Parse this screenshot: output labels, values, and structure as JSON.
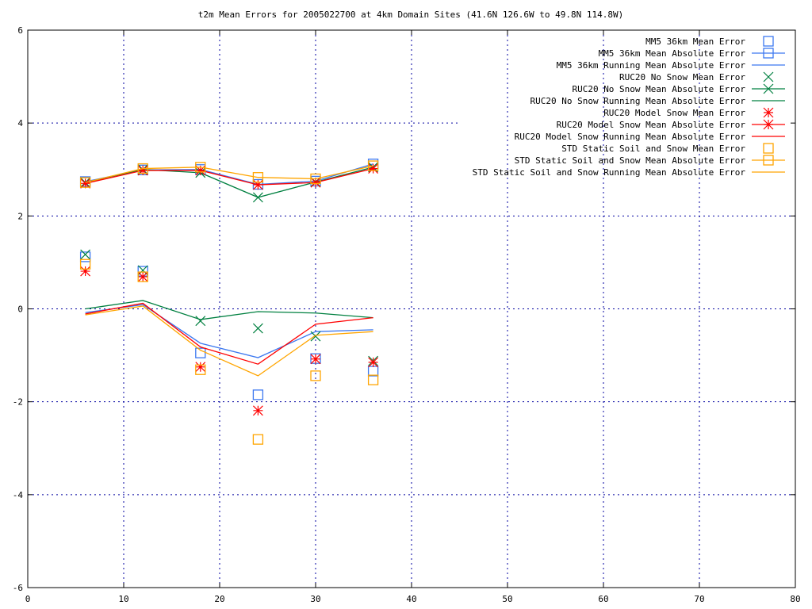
{
  "chart_data": {
    "type": "line",
    "title": "t2m Mean Errors for 2005022700 at 4km Domain Sites (41.6N 126.6W to 49.8N 114.8W)",
    "xlabel": "",
    "ylabel": "",
    "xlim": [
      0,
      80
    ],
    "ylim": [
      -6,
      6
    ],
    "xticks": [
      0,
      10,
      20,
      30,
      40,
      50,
      60,
      70,
      80
    ],
    "yticks": [
      -6,
      -4,
      -2,
      0,
      2,
      4,
      6
    ],
    "grid": true,
    "legend_position": "top-right",
    "x": [
      6,
      12,
      18,
      24,
      30,
      36
    ],
    "series": [
      {
        "name": "MM5 36km Mean Error",
        "style": "points",
        "marker": "square",
        "color": "#3c78f0",
        "values": [
          1.12,
          0.81,
          -0.95,
          -1.85,
          -1.07,
          -1.34
        ]
      },
      {
        "name": "MM5 36km Mean Absolute Error",
        "style": "linespoints",
        "marker": "square",
        "color": "#3c78f0",
        "values": [
          2.74,
          2.99,
          3.0,
          2.68,
          2.75,
          3.12
        ]
      },
      {
        "name": "MM5 36km Running Mean Absolute Error",
        "style": "lines",
        "marker": "none",
        "color": "#3c78f0",
        "values": [
          -0.08,
          0.09,
          -0.74,
          -1.05,
          -0.49,
          -0.45
        ]
      },
      {
        "name": "RUC20 No Snow Mean Error",
        "style": "points",
        "marker": "x",
        "color": "#008040",
        "values": [
          1.17,
          0.83,
          -0.26,
          -0.42,
          -0.59,
          -1.12
        ]
      },
      {
        "name": "RUC20 No Snow Mean Absolute Error",
        "style": "linespoints",
        "marker": "x",
        "color": "#008040",
        "values": [
          2.72,
          3.0,
          2.93,
          2.4,
          2.73,
          3.05
        ]
      },
      {
        "name": "RUC20 No Snow Running Mean Absolute Error",
        "style": "lines",
        "marker": "none",
        "color": "#008040",
        "values": [
          0.0,
          0.18,
          -0.23,
          -0.06,
          -0.09,
          -0.19
        ]
      },
      {
        "name": "RUC20 Model Snow Mean Error",
        "style": "points",
        "marker": "star",
        "color": "#ff0000",
        "values": [
          0.81,
          0.69,
          -1.25,
          -2.19,
          -1.08,
          -1.15
        ]
      },
      {
        "name": "RUC20 Model Snow Mean Absolute Error",
        "style": "linespoints",
        "marker": "star",
        "color": "#ff0000",
        "values": [
          2.7,
          2.98,
          2.98,
          2.67,
          2.72,
          3.02
        ]
      },
      {
        "name": "RUC20 Model Snow Running Mean Absolute Error",
        "style": "lines",
        "marker": "none",
        "color": "#ff0000",
        "values": [
          -0.11,
          0.12,
          -0.82,
          -1.19,
          -0.33,
          -0.19
        ]
      },
      {
        "name": "STD Static Soil and Snow Mean Error",
        "style": "points",
        "marker": "square",
        "color": "#ffa500",
        "values": [
          0.96,
          0.69,
          -1.31,
          -2.81,
          -1.44,
          -1.53
        ]
      },
      {
        "name": "STD Static Soil and Snow Mean Absolute Error",
        "style": "linespoints",
        "marker": "square",
        "color": "#ffa500",
        "values": [
          2.72,
          3.02,
          3.05,
          2.83,
          2.8,
          3.08
        ]
      },
      {
        "name": "STD Static Soil and Snow Running Mean Absolute Error",
        "style": "lines",
        "marker": "none",
        "color": "#ffa500",
        "values": [
          -0.13,
          0.06,
          -0.89,
          -1.44,
          -0.57,
          -0.49
        ]
      }
    ]
  }
}
